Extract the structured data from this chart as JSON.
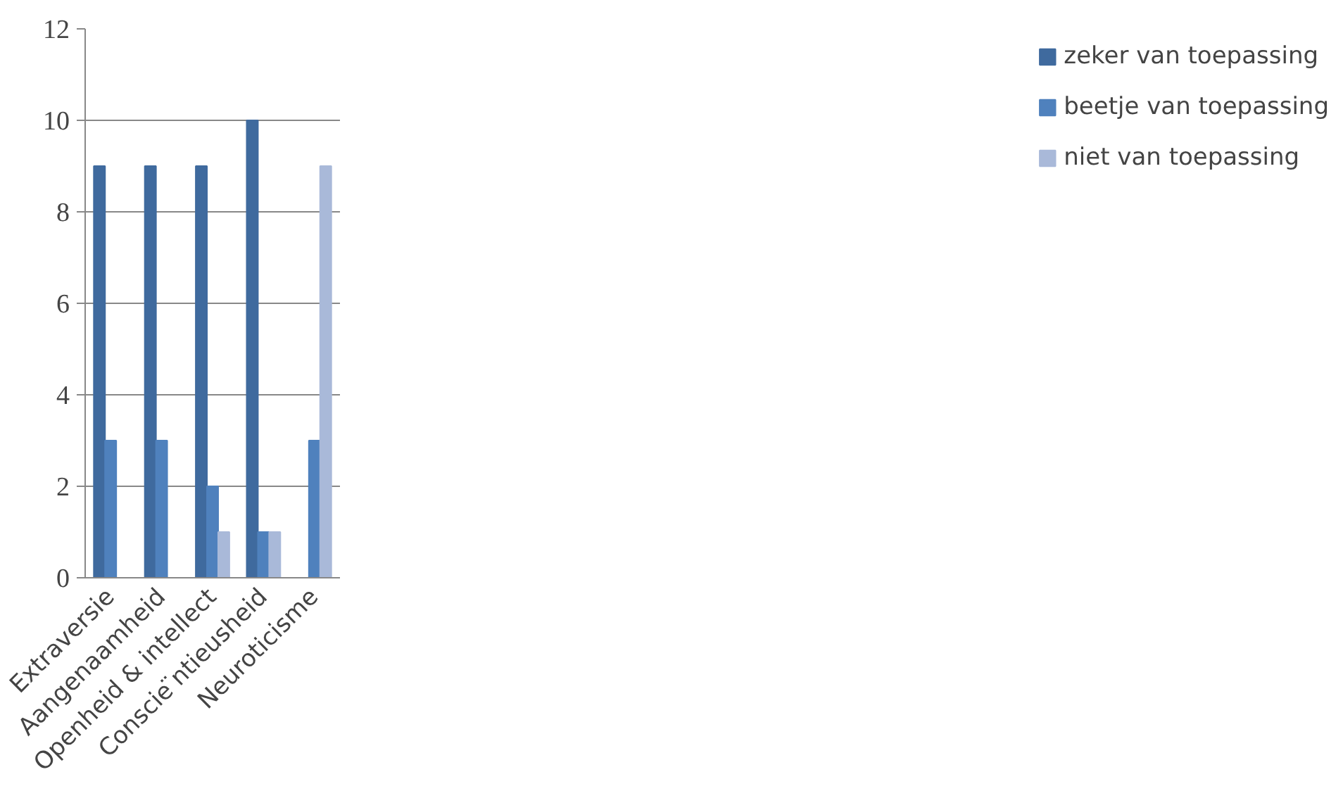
{
  "chart_data": {
    "type": "bar",
    "categories": [
      "Extraversie",
      "Aangenaamheid",
      "Openheid & intellect",
      "Conscie ̈ntieusheid",
      "Neuroticisme"
    ],
    "series": [
      {
        "name": "zeker van toepassing",
        "color": "#3f6a9e",
        "values": [
          9,
          9,
          9,
          10,
          0
        ]
      },
      {
        "name": "beetje van toepassing",
        "color": "#4f81bd",
        "values": [
          3,
          3,
          2,
          1,
          3
        ]
      },
      {
        "name": "niet van toepassing",
        "color": "#a9b9d9",
        "values": [
          0,
          0,
          1,
          1,
          9
        ]
      }
    ],
    "ylim": [
      0,
      12
    ],
    "yticks": [
      0,
      2,
      4,
      6,
      8,
      10,
      12
    ],
    "grid": "y",
    "legend": "right"
  }
}
